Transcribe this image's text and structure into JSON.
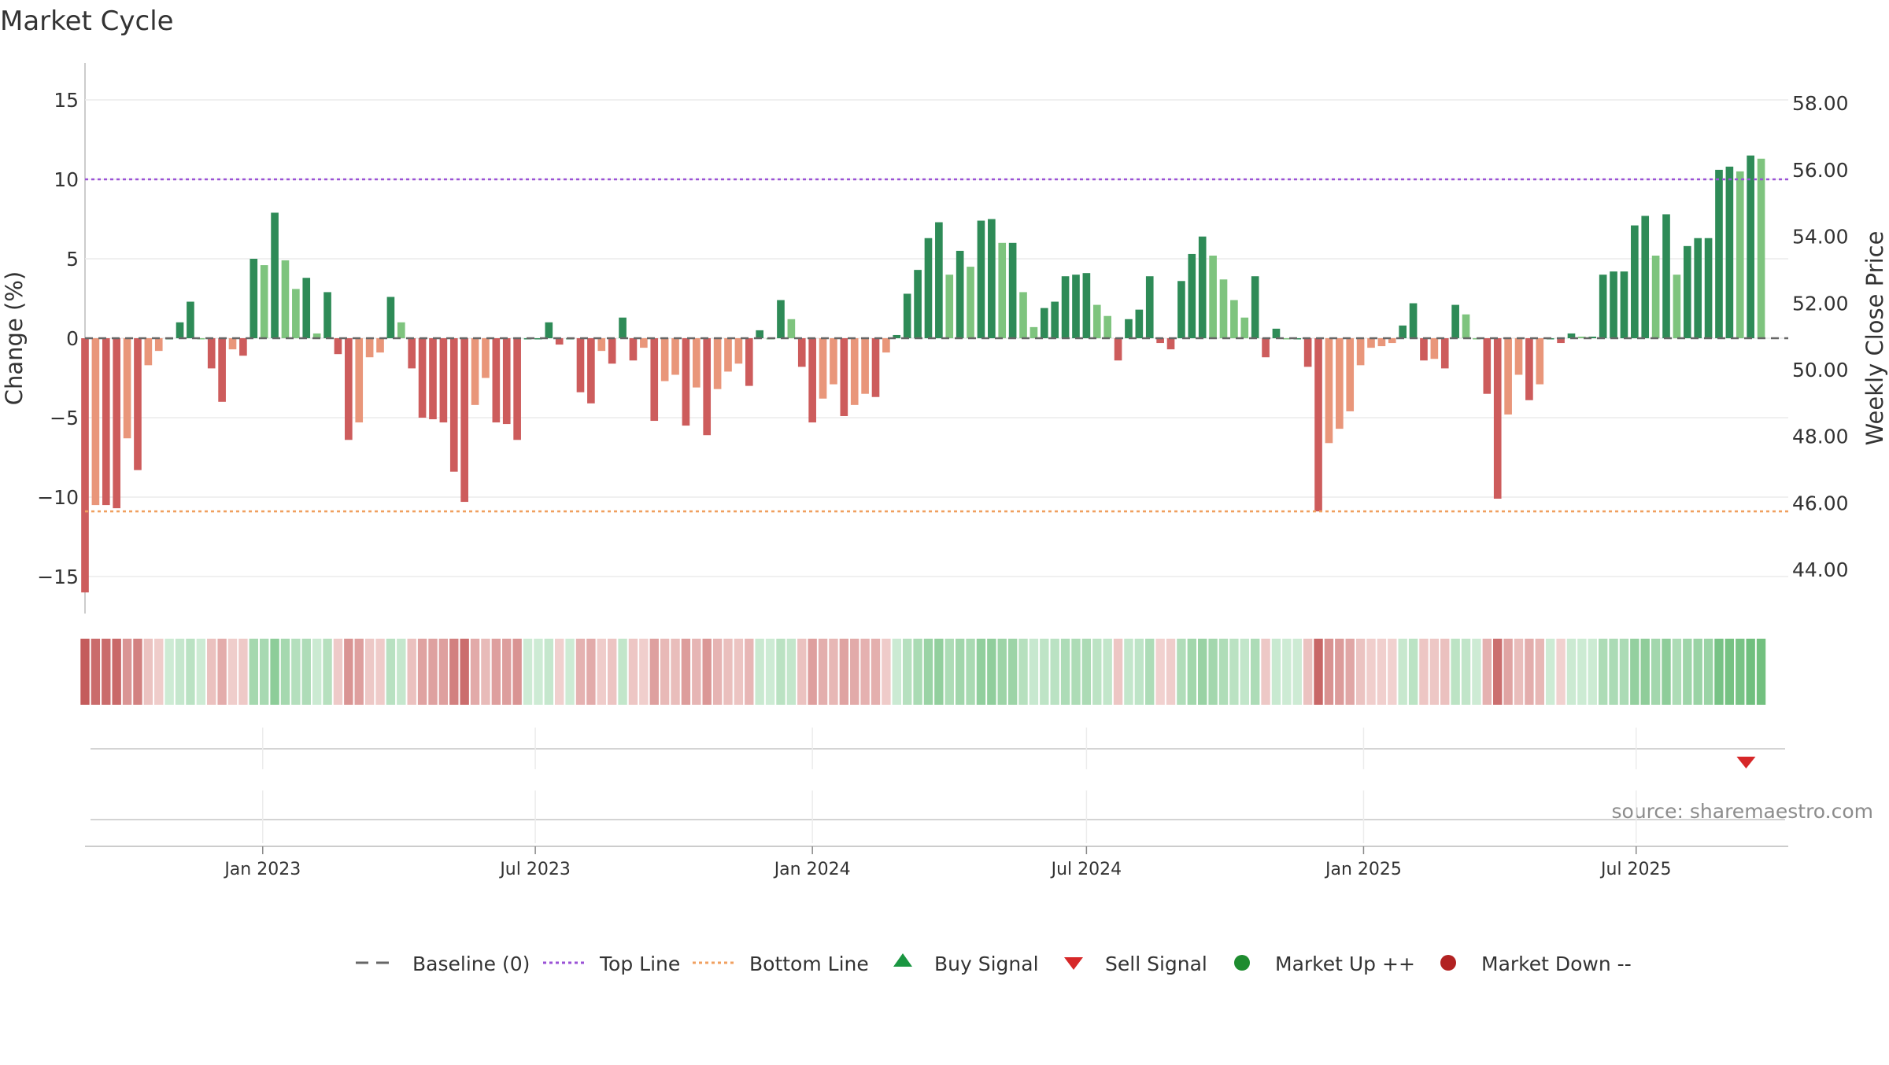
{
  "chart_data": {
    "type": "bar",
    "title": "Market Cycle",
    "ylabel": "Change (%)",
    "y2label": "Weekly Close Price",
    "ylim": [
      -17,
      17
    ],
    "yticks": [
      -15,
      -10,
      -5,
      0,
      5,
      10,
      15
    ],
    "y2ticks": [
      "44.00",
      "46.00",
      "48.00",
      "50.00",
      "52.00",
      "54.00",
      "56.00",
      "58.00"
    ],
    "y2lim": [
      43.2,
      58.5
    ],
    "x_range": [
      "2022-09-05",
      "2025-10-10"
    ],
    "xticks": [
      {
        "date": "2023-01-01",
        "label": "Jan 2023"
      },
      {
        "date": "2023-07-01",
        "label": "Jul 2023"
      },
      {
        "date": "2024-01-01",
        "label": "Jan 2024"
      },
      {
        "date": "2024-07-01",
        "label": "Jul 2024"
      },
      {
        "date": "2025-01-01",
        "label": "Jan 2025"
      },
      {
        "date": "2025-07-01",
        "label": "Jul 2025"
      }
    ],
    "start_week": "2022-09-05",
    "week_step_days": 7,
    "values": [
      -16,
      -10.5,
      -10.5,
      -10.7,
      -6.3,
      -8.3,
      -1.7,
      -0.8,
      0,
      1,
      2.3,
      0,
      -1.9,
      -4,
      -0.7,
      -1.1,
      5,
      4.6,
      7.9,
      4.9,
      3.1,
      3.8,
      0.3,
      2.9,
      -1,
      -6.4,
      -5.3,
      -1.2,
      -0.9,
      2.6,
      1,
      -1.9,
      -5,
      -5.1,
      -5.3,
      -8.4,
      -10.3,
      -4.2,
      -2.5,
      -5.3,
      -5.4,
      -6.4,
      0,
      0,
      1,
      -0.4,
      0,
      -3.4,
      -4.1,
      -0.8,
      -1.6,
      1.3,
      -1.4,
      -0.6,
      -5.2,
      -2.7,
      -2.3,
      -5.5,
      -3.1,
      -6.1,
      -3.2,
      -2.1,
      -1.6,
      -3,
      0.5,
      0,
      2.4,
      1.2,
      -1.8,
      -5.3,
      -3.8,
      -2.9,
      -4.9,
      -4.2,
      -3.5,
      -3.7,
      -0.9,
      0.2,
      2.8,
      4.3,
      6.3,
      7.3,
      4,
      5.5,
      4.5,
      7.4,
      7.5,
      6,
      6,
      2.9,
      0.7,
      1.9,
      2.3,
      3.9,
      4,
      4.1,
      2.1,
      1.4,
      -1.4,
      1.2,
      1.8,
      3.9,
      -0.3,
      -0.7,
      3.6,
      5.3,
      6.4,
      5.2,
      3.7,
      2.4,
      1.3,
      3.9,
      -1.2,
      0.6,
      0,
      0,
      -1.8,
      -10.9,
      -6.6,
      -5.7,
      -4.6,
      -1.7,
      -0.6,
      -0.5,
      -0.3,
      0.8,
      2.2,
      -1.4,
      -1.3,
      -1.9,
      2.1,
      1.5,
      0,
      -3.5,
      -10.1,
      -4.8,
      -2.3,
      -3.9,
      -2.9,
      0,
      -0.3,
      0.3,
      0.1,
      0.1,
      4,
      4.2,
      4.2,
      7.1,
      7.7,
      5.2,
      7.8,
      4,
      5.8,
      6.3,
      6.3,
      10.6,
      10.8,
      10.5,
      11.5,
      11.3
    ],
    "series": [
      {
        "name": "Baseline (0)",
        "value": 0,
        "color": "#666666",
        "style": "dashed"
      },
      {
        "name": "Top Line",
        "value": 10,
        "color": "#9a52d6",
        "style": "dotted"
      },
      {
        "name": "Bottom Line",
        "value": -10.9,
        "color": "#f0a060",
        "style": "dotted"
      }
    ],
    "colors": {
      "strong_up": "#2e8b57",
      "weak_up": "#7ec47e",
      "strong_down": "#cd5c5c",
      "weak_down": "#e9967a",
      "sell_signal": "#d62728",
      "buy_signal": "#1a9641",
      "market_up": "#1e8c2f",
      "market_down": "#b22222"
    },
    "signals": [
      {
        "type": "sell",
        "date": "2025-09-12"
      }
    ],
    "legend_position": "bottom",
    "legend": [
      {
        "label": "Baseline (0)",
        "marker": "dash",
        "color": "#666666"
      },
      {
        "label": "Top Line",
        "marker": "dotted-line",
        "color": "#9a52d6"
      },
      {
        "label": "Bottom Line",
        "marker": "dotted-line",
        "color": "#f0a060"
      },
      {
        "label": "Buy Signal",
        "marker": "triangle-up",
        "color": "#1a9641"
      },
      {
        "label": "Sell Signal",
        "marker": "triangle-down",
        "color": "#d62728"
      },
      {
        "label": "Market Up ++",
        "marker": "circle",
        "color": "#1e8c2f"
      },
      {
        "label": "Market Down --",
        "marker": "circle",
        "color": "#b22222"
      }
    ],
    "annotation": "source: sharemaestro.com",
    "grid": true
  }
}
